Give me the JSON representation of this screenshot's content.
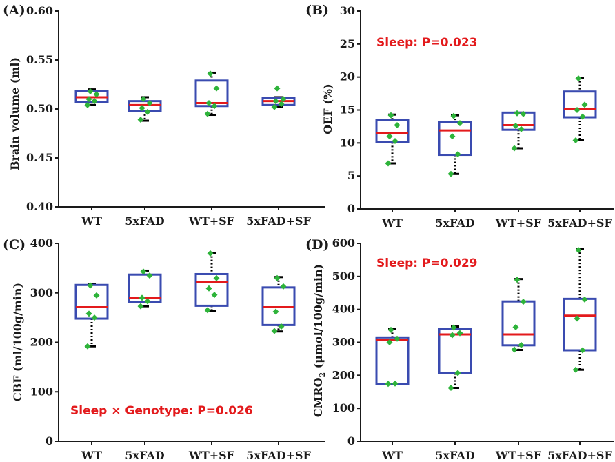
{
  "figure": {
    "colors": {
      "box": "#3a4bb0",
      "median": "#e31a1c",
      "point": "#2eb33a",
      "whisker": "#000000",
      "annotation": "#e31a1c",
      "axis": "#1a1a1a"
    }
  },
  "chart_data": [
    {
      "type": "box",
      "panel_label": "(A)",
      "ylabel": "Brain volume (ml)",
      "ylabel_sub": "",
      "ylabel_tail": "",
      "ylim": [
        0.4,
        0.6
      ],
      "yticks": [
        0.4,
        0.45,
        0.5,
        0.55,
        0.6
      ],
      "ytick_labels": [
        "0.40",
        "0.45",
        "0.50",
        "0.55",
        "0.60"
      ],
      "annotation": "",
      "categories": [
        "WT",
        "5xFAD",
        "WT+SF",
        "5xFAD+SF"
      ],
      "boxes": [
        {
          "whisker_low": 0.504,
          "q1": 0.507,
          "median": 0.512,
          "q3": 0.518,
          "whisker_high": 0.52,
          "points": [
            0.504,
            0.508,
            0.51,
            0.515,
            0.518
          ]
        },
        {
          "whisker_low": 0.488,
          "q1": 0.498,
          "median": 0.504,
          "q3": 0.508,
          "whisker_high": 0.512,
          "points": [
            0.489,
            0.497,
            0.501,
            0.506,
            0.51
          ]
        },
        {
          "whisker_low": 0.494,
          "q1": 0.503,
          "median": 0.506,
          "q3": 0.529,
          "whisker_high": 0.537,
          "points": [
            0.495,
            0.503,
            0.506,
            0.521,
            0.536
          ]
        },
        {
          "whisker_low": 0.502,
          "q1": 0.504,
          "median": 0.508,
          "q3": 0.511,
          "whisker_high": 0.512,
          "points": [
            0.502,
            0.505,
            0.508,
            0.51,
            0.521
          ]
        }
      ]
    },
    {
      "type": "box",
      "panel_label": "(B)",
      "ylabel": "OEF (%)",
      "ylabel_sub": "",
      "ylabel_tail": "",
      "ylim": [
        0,
        30
      ],
      "yticks": [
        0,
        5,
        10,
        15,
        20,
        25,
        30
      ],
      "ytick_labels": [
        "0",
        "5",
        "10",
        "15",
        "20",
        "25",
        "30"
      ],
      "annotation": "Sleep: P=0.023",
      "categories": [
        "WT",
        "5xFAD",
        "WT+SF",
        "5xFAD+SF"
      ],
      "boxes": [
        {
          "whisker_low": 6.9,
          "q1": 10.1,
          "median": 11.5,
          "q3": 13.5,
          "whisker_high": 14.3,
          "points": [
            6.9,
            10.3,
            11.0,
            12.7,
            14.2
          ]
        },
        {
          "whisker_low": 5.3,
          "q1": 8.2,
          "median": 11.9,
          "q3": 13.2,
          "whisker_high": 14.2,
          "points": [
            5.3,
            8.3,
            11.0,
            13.0,
            14.1
          ]
        },
        {
          "whisker_low": 9.2,
          "q1": 12.0,
          "median": 12.7,
          "q3": 14.6,
          "whisker_high": 14.6,
          "points": [
            9.2,
            12.1,
            12.6,
            14.4,
            14.5
          ]
        },
        {
          "whisker_low": 10.4,
          "q1": 13.9,
          "median": 15.1,
          "q3": 17.8,
          "whisker_high": 19.9,
          "points": [
            10.4,
            14.0,
            15.0,
            15.8,
            19.8
          ]
        }
      ]
    },
    {
      "type": "box",
      "panel_label": "(C)",
      "ylabel": "CBF (ml/100g/min)",
      "ylabel_sub": "",
      "ylabel_tail": "",
      "ylim": [
        0,
        400
      ],
      "yticks": [
        0,
        100,
        200,
        300,
        400
      ],
      "ytick_labels": [
        "0",
        "100",
        "200",
        "300",
        "400"
      ],
      "annotation": "Sleep × Genotype: P=0.026",
      "categories": [
        "WT",
        "5xFAD",
        "WT+SF",
        "5xFAD+SF"
      ],
      "boxes": [
        {
          "whisker_low": 192,
          "q1": 248,
          "median": 271,
          "q3": 316,
          "whisker_high": 318,
          "points": [
            192,
            250,
            258,
            295,
            315
          ]
        },
        {
          "whisker_low": 273,
          "q1": 282,
          "median": 290,
          "q3": 337,
          "whisker_high": 345,
          "points": [
            273,
            283,
            290,
            335,
            343
          ]
        },
        {
          "whisker_low": 264,
          "q1": 274,
          "median": 322,
          "q3": 338,
          "whisker_high": 381,
          "points": [
            265,
            296,
            309,
            330,
            380
          ]
        },
        {
          "whisker_low": 222,
          "q1": 235,
          "median": 271,
          "q3": 311,
          "whisker_high": 332,
          "points": [
            223,
            232,
            262,
            313,
            330
          ]
        }
      ]
    },
    {
      "type": "box",
      "panel_label": "(D)",
      "ylabel": "CMRO",
      "ylabel_sub": "2",
      "ylabel_tail": " (μmol/100g/min)",
      "ylim": [
        0,
        600
      ],
      "yticks": [
        0,
        100,
        200,
        300,
        400,
        500,
        600
      ],
      "ytick_labels": [
        "0",
        "100",
        "200",
        "300",
        "400",
        "500",
        "600"
      ],
      "annotation": "Sleep: P=0.029",
      "categories": [
        "WT",
        "5xFAD",
        "WT+SF",
        "5xFAD+SF"
      ],
      "boxes": [
        {
          "whisker_low": 174,
          "q1": 174,
          "median": 307,
          "q3": 315,
          "whisker_high": 340,
          "points": [
            174,
            175,
            300,
            311,
            338
          ]
        },
        {
          "whisker_low": 162,
          "q1": 206,
          "median": 324,
          "q3": 340,
          "whisker_high": 348,
          "points": [
            162,
            207,
            322,
            328,
            345
          ]
        },
        {
          "whisker_low": 277,
          "q1": 291,
          "median": 324,
          "q3": 424,
          "whisker_high": 492,
          "points": [
            278,
            292,
            346,
            423,
            490
          ]
        },
        {
          "whisker_low": 217,
          "q1": 276,
          "median": 381,
          "q3": 432,
          "whisker_high": 583,
          "points": [
            217,
            276,
            372,
            430,
            580
          ]
        }
      ]
    }
  ]
}
